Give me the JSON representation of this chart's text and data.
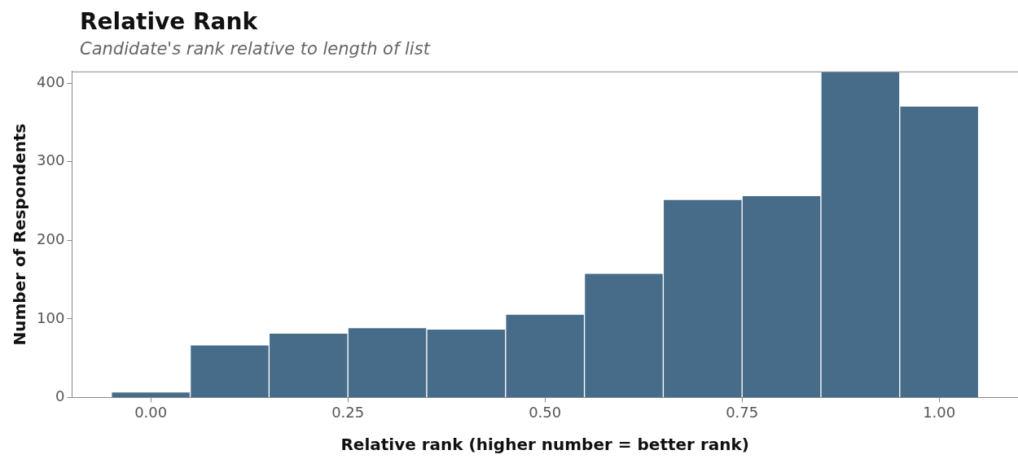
{
  "chart_data": {
    "type": "histogram",
    "title": "Relative Rank",
    "subtitle": "Candidate's rank relative to length of list",
    "xlabel": "Relative rank (higher number = better rank)",
    "ylabel": "Number of Respondents",
    "bins": [
      -0.05,
      0.05,
      0.15,
      0.25,
      0.35,
      0.45,
      0.55,
      0.65,
      0.75,
      0.85,
      0.95,
      1.05
    ],
    "values": [
      7,
      67,
      82,
      89,
      87,
      106,
      158,
      252,
      257,
      415,
      371
    ],
    "color": "#466c8a",
    "xlim": [
      -0.1,
      1.1
    ],
    "xticks": [
      {
        "value": 0,
        "label": "0.00"
      },
      {
        "value": 0.25,
        "label": "0.25"
      },
      {
        "value": 0.5,
        "label": "0.50"
      },
      {
        "value": 0.75,
        "label": "0.75"
      },
      {
        "value": 1,
        "label": "1.00"
      }
    ],
    "ylim": [
      0,
      415
    ],
    "yticks": [
      0,
      100,
      200,
      300,
      400
    ],
    "grid": false,
    "legend": false
  }
}
